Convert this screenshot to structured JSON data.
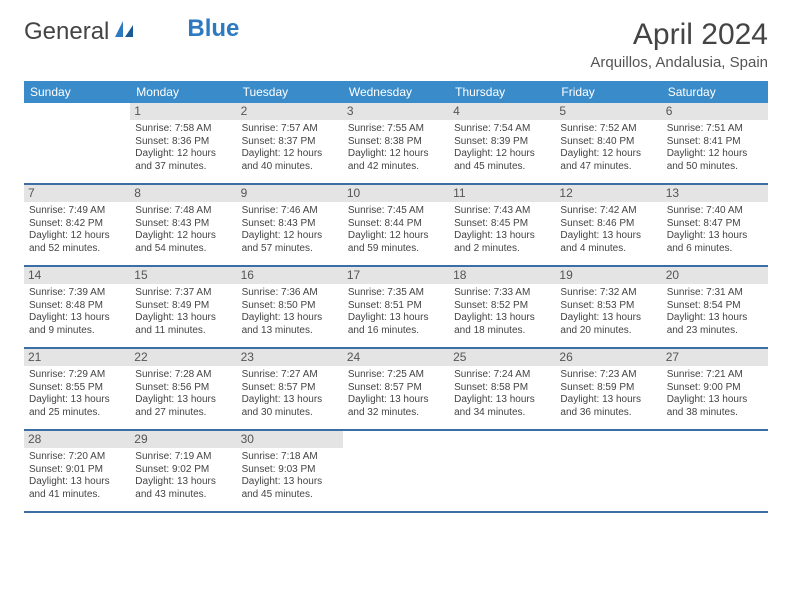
{
  "logo": {
    "text1": "General",
    "text2": "Blue"
  },
  "title": "April 2024",
  "subtitle": "Arquillos, Andalusia, Spain",
  "styling": {
    "header_bg": "#3a8bc9",
    "header_text": "#ffffff",
    "daynum_bg": "#e4e4e4",
    "week_border": "#3a6ea5",
    "body_text": "#444444",
    "title_fontsize": 30,
    "subtitle_fontsize": 15,
    "dow_fontsize": 12,
    "cell_fontsize": 10,
    "page_bg": "#ffffff"
  },
  "days_of_week": [
    "Sunday",
    "Monday",
    "Tuesday",
    "Wednesday",
    "Thursday",
    "Friday",
    "Saturday"
  ],
  "weeks": [
    [
      {
        "blank": true
      },
      {
        "n": "1",
        "sunrise": "Sunrise: 7:58 AM",
        "sunset": "Sunset: 8:36 PM",
        "dl1": "Daylight: 12 hours",
        "dl2": "and 37 minutes."
      },
      {
        "n": "2",
        "sunrise": "Sunrise: 7:57 AM",
        "sunset": "Sunset: 8:37 PM",
        "dl1": "Daylight: 12 hours",
        "dl2": "and 40 minutes."
      },
      {
        "n": "3",
        "sunrise": "Sunrise: 7:55 AM",
        "sunset": "Sunset: 8:38 PM",
        "dl1": "Daylight: 12 hours",
        "dl2": "and 42 minutes."
      },
      {
        "n": "4",
        "sunrise": "Sunrise: 7:54 AM",
        "sunset": "Sunset: 8:39 PM",
        "dl1": "Daylight: 12 hours",
        "dl2": "and 45 minutes."
      },
      {
        "n": "5",
        "sunrise": "Sunrise: 7:52 AM",
        "sunset": "Sunset: 8:40 PM",
        "dl1": "Daylight: 12 hours",
        "dl2": "and 47 minutes."
      },
      {
        "n": "6",
        "sunrise": "Sunrise: 7:51 AM",
        "sunset": "Sunset: 8:41 PM",
        "dl1": "Daylight: 12 hours",
        "dl2": "and 50 minutes."
      }
    ],
    [
      {
        "n": "7",
        "sunrise": "Sunrise: 7:49 AM",
        "sunset": "Sunset: 8:42 PM",
        "dl1": "Daylight: 12 hours",
        "dl2": "and 52 minutes."
      },
      {
        "n": "8",
        "sunrise": "Sunrise: 7:48 AM",
        "sunset": "Sunset: 8:43 PM",
        "dl1": "Daylight: 12 hours",
        "dl2": "and 54 minutes."
      },
      {
        "n": "9",
        "sunrise": "Sunrise: 7:46 AM",
        "sunset": "Sunset: 8:43 PM",
        "dl1": "Daylight: 12 hours",
        "dl2": "and 57 minutes."
      },
      {
        "n": "10",
        "sunrise": "Sunrise: 7:45 AM",
        "sunset": "Sunset: 8:44 PM",
        "dl1": "Daylight: 12 hours",
        "dl2": "and 59 minutes."
      },
      {
        "n": "11",
        "sunrise": "Sunrise: 7:43 AM",
        "sunset": "Sunset: 8:45 PM",
        "dl1": "Daylight: 13 hours",
        "dl2": "and 2 minutes."
      },
      {
        "n": "12",
        "sunrise": "Sunrise: 7:42 AM",
        "sunset": "Sunset: 8:46 PM",
        "dl1": "Daylight: 13 hours",
        "dl2": "and 4 minutes."
      },
      {
        "n": "13",
        "sunrise": "Sunrise: 7:40 AM",
        "sunset": "Sunset: 8:47 PM",
        "dl1": "Daylight: 13 hours",
        "dl2": "and 6 minutes."
      }
    ],
    [
      {
        "n": "14",
        "sunrise": "Sunrise: 7:39 AM",
        "sunset": "Sunset: 8:48 PM",
        "dl1": "Daylight: 13 hours",
        "dl2": "and 9 minutes."
      },
      {
        "n": "15",
        "sunrise": "Sunrise: 7:37 AM",
        "sunset": "Sunset: 8:49 PM",
        "dl1": "Daylight: 13 hours",
        "dl2": "and 11 minutes."
      },
      {
        "n": "16",
        "sunrise": "Sunrise: 7:36 AM",
        "sunset": "Sunset: 8:50 PM",
        "dl1": "Daylight: 13 hours",
        "dl2": "and 13 minutes."
      },
      {
        "n": "17",
        "sunrise": "Sunrise: 7:35 AM",
        "sunset": "Sunset: 8:51 PM",
        "dl1": "Daylight: 13 hours",
        "dl2": "and 16 minutes."
      },
      {
        "n": "18",
        "sunrise": "Sunrise: 7:33 AM",
        "sunset": "Sunset: 8:52 PM",
        "dl1": "Daylight: 13 hours",
        "dl2": "and 18 minutes."
      },
      {
        "n": "19",
        "sunrise": "Sunrise: 7:32 AM",
        "sunset": "Sunset: 8:53 PM",
        "dl1": "Daylight: 13 hours",
        "dl2": "and 20 minutes."
      },
      {
        "n": "20",
        "sunrise": "Sunrise: 7:31 AM",
        "sunset": "Sunset: 8:54 PM",
        "dl1": "Daylight: 13 hours",
        "dl2": "and 23 minutes."
      }
    ],
    [
      {
        "n": "21",
        "sunrise": "Sunrise: 7:29 AM",
        "sunset": "Sunset: 8:55 PM",
        "dl1": "Daylight: 13 hours",
        "dl2": "and 25 minutes."
      },
      {
        "n": "22",
        "sunrise": "Sunrise: 7:28 AM",
        "sunset": "Sunset: 8:56 PM",
        "dl1": "Daylight: 13 hours",
        "dl2": "and 27 minutes."
      },
      {
        "n": "23",
        "sunrise": "Sunrise: 7:27 AM",
        "sunset": "Sunset: 8:57 PM",
        "dl1": "Daylight: 13 hours",
        "dl2": "and 30 minutes."
      },
      {
        "n": "24",
        "sunrise": "Sunrise: 7:25 AM",
        "sunset": "Sunset: 8:57 PM",
        "dl1": "Daylight: 13 hours",
        "dl2": "and 32 minutes."
      },
      {
        "n": "25",
        "sunrise": "Sunrise: 7:24 AM",
        "sunset": "Sunset: 8:58 PM",
        "dl1": "Daylight: 13 hours",
        "dl2": "and 34 minutes."
      },
      {
        "n": "26",
        "sunrise": "Sunrise: 7:23 AM",
        "sunset": "Sunset: 8:59 PM",
        "dl1": "Daylight: 13 hours",
        "dl2": "and 36 minutes."
      },
      {
        "n": "27",
        "sunrise": "Sunrise: 7:21 AM",
        "sunset": "Sunset: 9:00 PM",
        "dl1": "Daylight: 13 hours",
        "dl2": "and 38 minutes."
      }
    ],
    [
      {
        "n": "28",
        "sunrise": "Sunrise: 7:20 AM",
        "sunset": "Sunset: 9:01 PM",
        "dl1": "Daylight: 13 hours",
        "dl2": "and 41 minutes."
      },
      {
        "n": "29",
        "sunrise": "Sunrise: 7:19 AM",
        "sunset": "Sunset: 9:02 PM",
        "dl1": "Daylight: 13 hours",
        "dl2": "and 43 minutes."
      },
      {
        "n": "30",
        "sunrise": "Sunrise: 7:18 AM",
        "sunset": "Sunset: 9:03 PM",
        "dl1": "Daylight: 13 hours",
        "dl2": "and 45 minutes."
      },
      {
        "blank": true
      },
      {
        "blank": true
      },
      {
        "blank": true
      },
      {
        "blank": true
      }
    ]
  ]
}
